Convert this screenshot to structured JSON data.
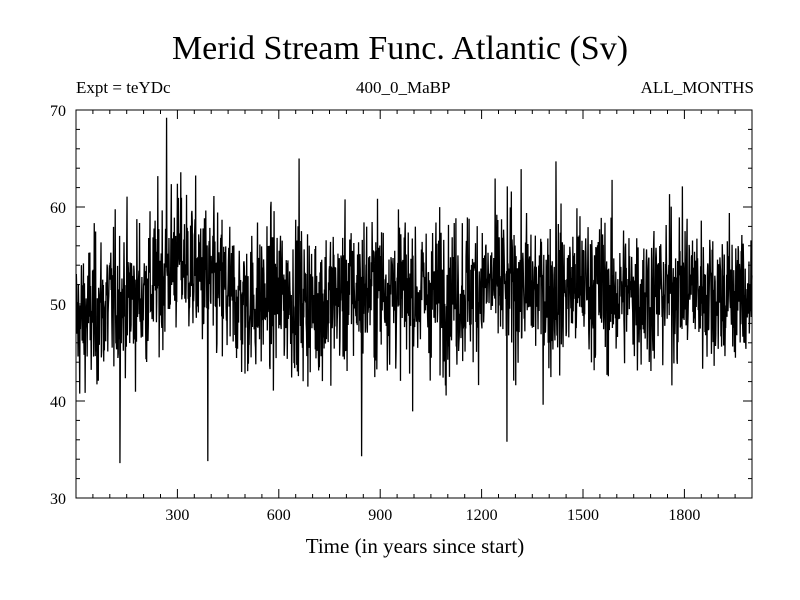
{
  "chart_data": {
    "type": "line",
    "title": "Merid Stream Func. Atlantic (Sv)",
    "subtitle_left": "Expt = teYDc",
    "subtitle_center": "400_0_MaBP",
    "subtitle_right": "ALL_MONTHS",
    "xlabel": "Time (in years since start)",
    "ylabel": "",
    "xlim": [
      0,
      2000
    ],
    "ylim": [
      30,
      70
    ],
    "x_ticks": [
      300,
      600,
      900,
      1200,
      1500,
      1800
    ],
    "y_ticks": [
      30,
      40,
      50,
      60,
      70
    ],
    "grid": false,
    "series": [
      {
        "color": "#000000",
        "x_start": 1,
        "x_step": 1,
        "n_points": 2000,
        "mean": 51,
        "std_dev": 4.5,
        "values_sample_every_100yrs": [
          48,
          50,
          51,
          55,
          52,
          50,
          51,
          50,
          51,
          52,
          51,
          51,
          52,
          52,
          51,
          52,
          51,
          51,
          52,
          51
        ],
        "notable_values": [
          {
            "x": 268,
            "y": 69.2
          },
          {
            "x": 130,
            "y": 33.6
          },
          {
            "x": 390,
            "y": 33.8
          },
          {
            "x": 845,
            "y": 34.3
          },
          {
            "x": 1275,
            "y": 35.8
          },
          {
            "x": 660,
            "y": 65.0
          },
          {
            "x": 1420,
            "y": 64.7
          }
        ]
      }
    ]
  }
}
